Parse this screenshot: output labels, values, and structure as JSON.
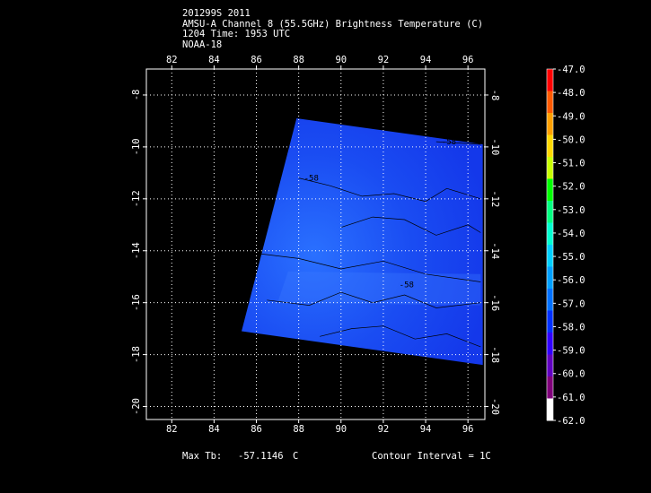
{
  "header": {
    "line1": "201299S 2011",
    "line2": "AMSU-A Channel 8 (55.5GHz) Brightness Temperature (C)",
    "line3": "1204 Time: 1953 UTC",
    "line4": "NOAA-18"
  },
  "footer": {
    "max_label": "Max Tb:",
    "max_value": "-57.1146",
    "max_unit": "C",
    "contour_text": "Contour Interval = 1C"
  },
  "chart_data": {
    "type": "heatmap",
    "title": "AMSU-A Channel 8 (55.5GHz) Brightness Temperature (C)",
    "xlim": [
      80.8,
      96.8
    ],
    "ylim": [
      -20.5,
      -7.0
    ],
    "x_ticks": [
      82,
      84,
      86,
      88,
      90,
      92,
      94,
      96
    ],
    "y_ticks": [
      -8,
      -10,
      -12,
      -14,
      -16,
      -18,
      -20
    ],
    "x_tick_labels": [
      "82",
      "84",
      "86",
      "88",
      "90",
      "92",
      "94",
      "96"
    ],
    "y_tick_labels": [
      "-8",
      "-10",
      "-12",
      "-14",
      "-16",
      "-18",
      "-20"
    ],
    "grid": true,
    "swath_corners": [
      [
        87.9,
        -8.9
      ],
      [
        96.7,
        -9.9
      ],
      [
        96.7,
        -18.4
      ],
      [
        85.3,
        -17.1
      ]
    ],
    "contour_labels": [
      {
        "text": "-58",
        "x": 95.1,
        "y": -9.9
      },
      {
        "text": "-58",
        "x": 88.6,
        "y": -11.3
      },
      {
        "text": "-58",
        "x": 93.1,
        "y": -15.4
      }
    ],
    "colorbar": {
      "labels": [
        "-47.0",
        "-48.0",
        "-49.0",
        "-50.0",
        "-51.0",
        "-52.0",
        "-53.0",
        "-54.0",
        "-55.0",
        "-56.0",
        "-57.0",
        "-58.0",
        "-59.0",
        "-60.0",
        "-61.0",
        "-62.0"
      ],
      "colors": [
        "#ff0000",
        "#ff5a00",
        "#ffa000",
        "#ffd800",
        "#c8ff00",
        "#00ff00",
        "#00ff80",
        "#00ffd0",
        "#00d0ff",
        "#00a0ff",
        "#0070ff",
        "#0030ff",
        "#3000ff",
        "#6000c0",
        "#80007a",
        "#ffffff"
      ]
    },
    "contour_interval": "1C"
  }
}
